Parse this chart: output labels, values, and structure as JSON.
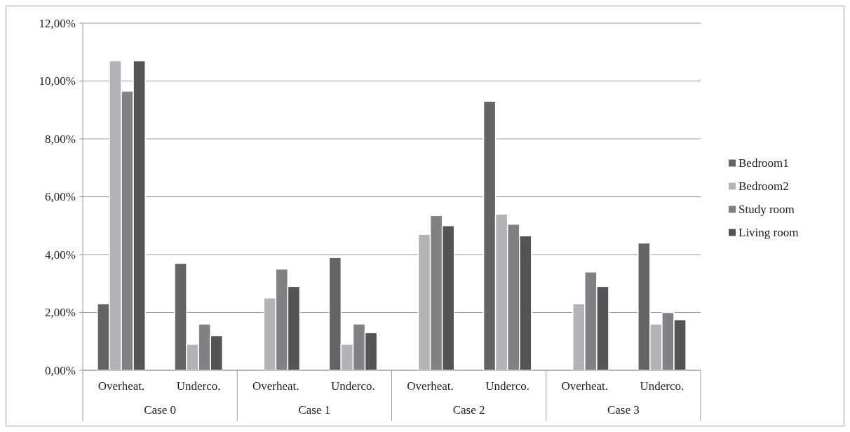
{
  "chart_data": {
    "type": "bar",
    "categories": [
      "Overheat.",
      "Underco.",
      "Overheat.",
      "Underco.",
      "Overheat.",
      "Underco.",
      "Overheat.",
      "Underco."
    ],
    "series": [
      {
        "name": "Bedroom1",
        "color": "#646466",
        "values": [
          2.3,
          3.7,
          null,
          3.9,
          null,
          9.3,
          null,
          4.4
        ]
      },
      {
        "name": "Bedroom2",
        "color": "#b2b3b6",
        "values": [
          10.7,
          0.9,
          2.5,
          0.9,
          4.7,
          5.4,
          2.3,
          1.6
        ]
      },
      {
        "name": "Study room",
        "color": "#808184",
        "values": [
          9.65,
          1.6,
          3.5,
          1.6,
          5.35,
          5.05,
          3.4,
          2.0
        ]
      },
      {
        "name": "Living room",
        "color": "#535456",
        "values": [
          10.7,
          1.2,
          2.9,
          1.3,
          5.0,
          4.65,
          2.9,
          1.75
        ]
      }
    ],
    "ylim": [
      0,
      12
    ],
    "yticks": [
      {
        "value": 0,
        "label": "0,00%"
      },
      {
        "value": 2,
        "label": "2,00%"
      },
      {
        "value": 4,
        "label": "4,00%"
      },
      {
        "value": 6,
        "label": "6,00%"
      },
      {
        "value": 8,
        "label": "8,00%"
      },
      {
        "value": 10,
        "label": "10,00%"
      },
      {
        "value": 12,
        "label": "12,00%"
      }
    ],
    "annotations": [
      "Case 0",
      "Case 1",
      "Case 2",
      "Case 3"
    ],
    "grid": "y",
    "legend": "right"
  }
}
